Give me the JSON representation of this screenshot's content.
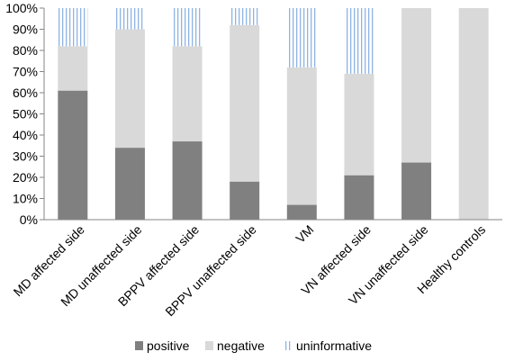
{
  "chart_data": {
    "type": "bar",
    "stacked": true,
    "title": "",
    "xlabel": "",
    "ylabel": "",
    "ylim": [
      0,
      100
    ],
    "y_ticks": [
      "0%",
      "10%",
      "20%",
      "30%",
      "40%",
      "50%",
      "60%",
      "70%",
      "80%",
      "90%",
      "100%"
    ],
    "grid": false,
    "legend_position": "bottom",
    "categories": [
      "MD affected side",
      "MD unaffected side",
      "BPPV affected side",
      "BPPV unaffected side",
      "VM",
      "VN affected side",
      "VN unaffected side",
      "Healthy controls"
    ],
    "series": [
      {
        "name": "positive",
        "color": "#808080",
        "pattern": "solid",
        "values": [
          61,
          34,
          37,
          18,
          7,
          21,
          27,
          0
        ]
      },
      {
        "name": "negative",
        "color": "#d9d9d9",
        "pattern": "solid",
        "values": [
          21,
          56,
          45,
          74,
          65,
          48,
          73,
          100
        ]
      },
      {
        "name": "uninformative",
        "color": "#8fb4e3",
        "pattern": "vertical-lines",
        "values": [
          18,
          10,
          18,
          8,
          28,
          31,
          0,
          0
        ]
      }
    ]
  }
}
